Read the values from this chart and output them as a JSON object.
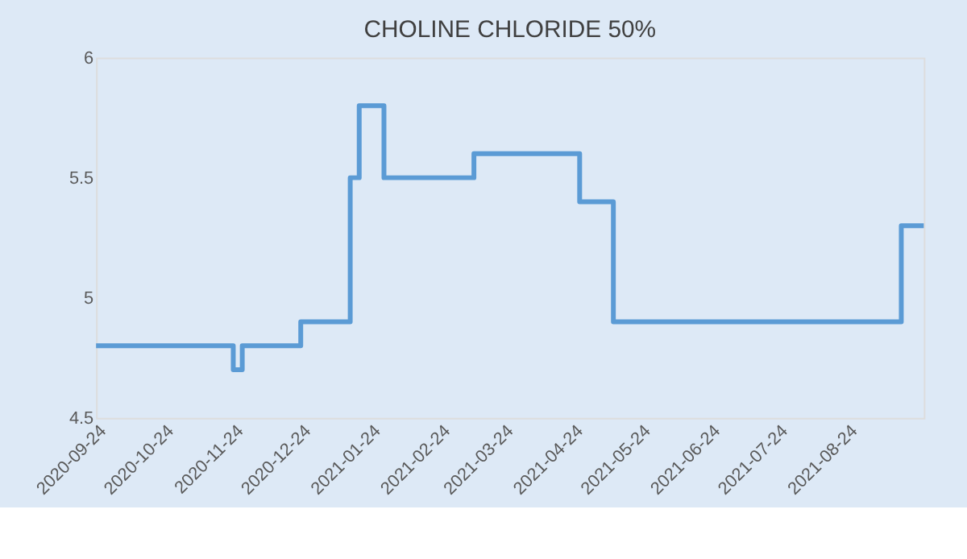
{
  "chart_data": {
    "type": "step",
    "title": "CHOLINE CHLORIDE 50%",
    "x": [
      "2020-09-24",
      "2020-11-24",
      "2020-11-28",
      "2020-12-24",
      "2021-01-15",
      "2021-01-19",
      "2021-01-30",
      "2021-03-11",
      "2021-04-27",
      "2021-05-12",
      "2021-09-17",
      "2021-09-27"
    ],
    "series": [
      {
        "color": "#5b9bd5",
        "values": [
          4.8,
          4.7,
          4.8,
          4.9,
          5.5,
          5.8,
          5.5,
          5.6,
          5.4,
          4.9,
          5.3,
          5.3
        ]
      }
    ],
    "xlim": [
      "2020-09-24",
      "2021-09-27"
    ],
    "xticks": [
      "2020-09-24",
      "2020-10-24",
      "2020-11-24",
      "2020-12-24",
      "2021-01-24",
      "2021-02-24",
      "2021-03-24",
      "2021-04-24",
      "2021-05-24",
      "2021-06-24",
      "2021-07-24",
      "2021-08-24"
    ],
    "ylim": [
      4.5,
      6
    ],
    "yticks": [
      4.5,
      5,
      5.5,
      6
    ],
    "grid": false,
    "marker": "none",
    "line_style": "solid"
  }
}
